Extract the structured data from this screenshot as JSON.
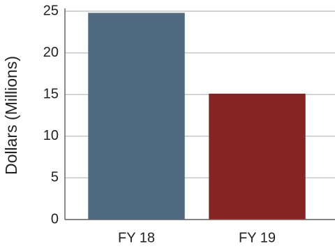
{
  "chart_data": {
    "type": "bar",
    "y_label": "Dollars (Millions)",
    "categories": [
      "FY 18",
      "FY 19"
    ],
    "values": [
      24.8,
      15.1
    ],
    "colors": [
      "#4f6a80",
      "#862423"
    ],
    "ylim": [
      0,
      25
    ],
    "yticks": [
      0,
      5,
      10,
      15,
      20,
      25
    ],
    "grid": true
  }
}
